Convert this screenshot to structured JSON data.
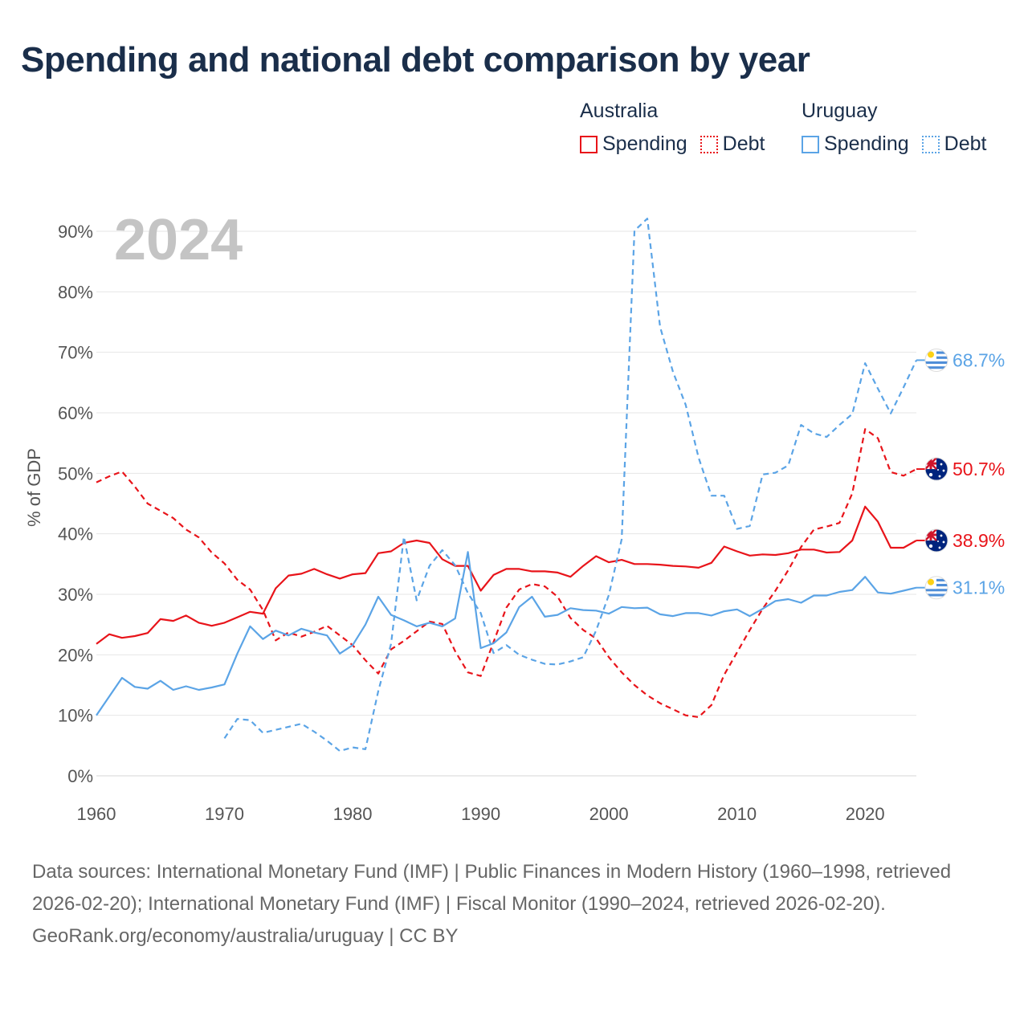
{
  "title": "Spending and national debt comparison by year",
  "legend": [
    {
      "group": "Australia",
      "items": [
        {
          "label": "Spending",
          "color": "#e8141a",
          "style": "solid"
        },
        {
          "label": "Debt",
          "color": "#e8141a",
          "style": "dotted"
        }
      ]
    },
    {
      "group": "Uruguay",
      "items": [
        {
          "label": "Spending",
          "color": "#5ba4e6",
          "style": "solid"
        },
        {
          "label": "Debt",
          "color": "#5ba4e6",
          "style": "dotted"
        }
      ]
    }
  ],
  "footer": {
    "sources": "Data sources: International Monetary Fund (IMF) | Public Finances in Modern History (1960–1998, retrieved 2026-02-20); International Monetary Fund (IMF) | Fiscal Monitor (1990–2024, retrieved 2026-02-20).",
    "credit": "GeoRank.org/economy/australia/uruguay | CC BY"
  },
  "chart_data": {
    "type": "line",
    "year_label": "2024",
    "ylabel": "% of GDP",
    "xlim": [
      1960,
      2024
    ],
    "ylim": [
      0,
      90
    ],
    "x_ticks": [
      1960,
      1970,
      1980,
      1990,
      2000,
      2010,
      2020
    ],
    "y_ticks": [
      0,
      10,
      20,
      30,
      40,
      50,
      60,
      70,
      80,
      90
    ],
    "y_tick_labels": [
      "0%",
      "10%",
      "20%",
      "30%",
      "40%",
      "50%",
      "60%",
      "70%",
      "80%",
      "90%"
    ],
    "grid": true,
    "series": [
      {
        "id": "aus-spending",
        "country": "Australia",
        "name": "Spending",
        "color": "#e8141a",
        "dash": false,
        "flag": "australia",
        "end_label": "38.9%",
        "start_year": 1960,
        "values": [
          21.8,
          23.4,
          22.8,
          23.1,
          23.6,
          25.9,
          25.6,
          26.5,
          25.3,
          24.8,
          25.3,
          26.2,
          27.1,
          26.8,
          31.0,
          33.1,
          33.4,
          34.2,
          33.3,
          32.6,
          33.3,
          33.5,
          36.8,
          37.1,
          38.5,
          38.9,
          38.5,
          35.8,
          34.7,
          34.7,
          30.6,
          33.2,
          34.2,
          34.2,
          33.8,
          33.8,
          33.6,
          32.9,
          34.7,
          36.3,
          35.3,
          35.7,
          35.0,
          35.0,
          34.9,
          34.7,
          34.6,
          34.4,
          35.2,
          37.9,
          37.1,
          36.4,
          36.6,
          36.5,
          36.8,
          37.4,
          37.4,
          36.9,
          37.0,
          38.9,
          44.5,
          42.0,
          37.7,
          37.7,
          38.9
        ]
      },
      {
        "id": "aus-debt",
        "country": "Australia",
        "name": "Debt",
        "color": "#e8141a",
        "dash": true,
        "flag": "australia",
        "end_label": "50.7%",
        "start_year": 1960,
        "values": [
          48.5,
          49.5,
          50.3,
          47.8,
          45.0,
          43.8,
          42.6,
          40.7,
          39.4,
          36.9,
          35.1,
          32.4,
          30.8,
          27.4,
          22.4,
          23.7,
          23.0,
          23.8,
          24.8,
          23.2,
          21.6,
          19.1,
          16.9,
          20.9,
          22.3,
          23.9,
          25.5,
          25.1,
          20.6,
          17.1,
          16.5,
          22.1,
          27.8,
          30.8,
          31.7,
          31.3,
          29.6,
          26.1,
          24.1,
          22.7,
          19.6,
          17.1,
          15.0,
          13.3,
          12.0,
          11.0,
          10.0,
          9.7,
          11.7,
          16.7,
          20.4,
          24.1,
          27.6,
          30.6,
          34.0,
          37.8,
          40.7,
          41.2,
          41.8,
          46.7,
          57.3,
          55.8,
          50.2,
          49.6,
          50.7
        ]
      },
      {
        "id": "ury-debt",
        "country": "Uruguay",
        "name": "Debt",
        "color": "#5ba4e6",
        "dash": true,
        "flag": "uruguay",
        "end_label": "68.7%",
        "start_year": 1970,
        "values": [
          6.2,
          9.4,
          9.2,
          7.1,
          7.6,
          8.1,
          8.6,
          7.3,
          5.8,
          4.1,
          4.7,
          4.4,
          14.0,
          21.8,
          39.5,
          29.0,
          34.7,
          37.3,
          34.8,
          30.2,
          26.9,
          20.3,
          21.6,
          20.0,
          19.2,
          18.5,
          18.4,
          18.9,
          19.6,
          24.0,
          29.9,
          39.1,
          90.1,
          92.1,
          74.2,
          66.8,
          61.3,
          52.6,
          46.3,
          46.3,
          40.8,
          41.3,
          49.8,
          50.1,
          51.3,
          58.0,
          56.6,
          56.0,
          58.0,
          59.8,
          68.2,
          64.0,
          59.9,
          64.2,
          68.7
        ]
      },
      {
        "id": "ury-spending",
        "country": "Uruguay",
        "name": "Spending",
        "color": "#5ba4e6",
        "dash": false,
        "flag": "uruguay",
        "end_label": "31.1%",
        "start_year": 1960,
        "values": [
          10.0,
          13.1,
          16.2,
          14.7,
          14.4,
          15.7,
          14.2,
          14.8,
          14.2,
          14.6,
          15.1,
          20.2,
          24.7,
          22.6,
          24.0,
          23.2,
          24.3,
          23.7,
          23.2,
          20.2,
          21.6,
          25.0,
          29.6,
          26.6,
          25.7,
          24.7,
          25.3,
          24.7,
          26.0,
          37.0,
          21.1,
          21.9,
          23.7,
          27.9,
          29.6,
          26.3,
          26.6,
          27.7,
          27.4,
          27.3,
          26.8,
          27.9,
          27.7,
          27.8,
          26.7,
          26.4,
          26.9,
          26.9,
          26.5,
          27.2,
          27.5,
          26.4,
          27.6,
          28.9,
          29.2,
          28.6,
          29.8,
          29.8,
          30.4,
          30.7,
          32.9,
          30.3,
          30.1,
          30.6,
          31.1
        ]
      }
    ]
  }
}
